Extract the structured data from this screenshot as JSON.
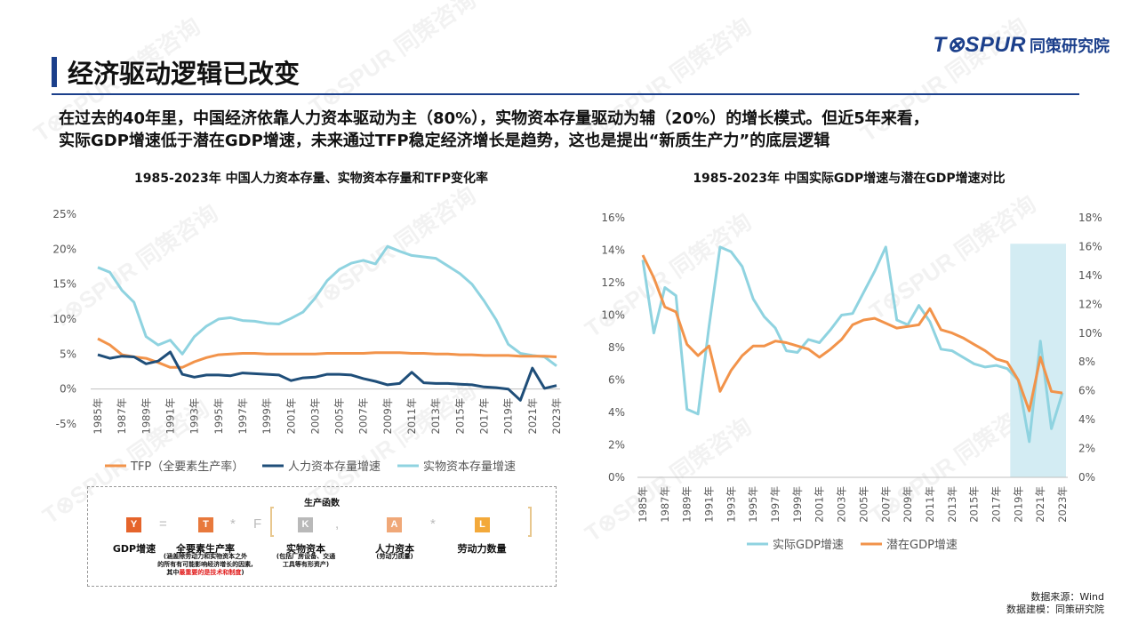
{
  "brand": {
    "mark": "T⊗SPUR",
    "name": "同策研究院"
  },
  "watermark_text": "T⊗SPUR 同策咨询",
  "page_title": "经济驱动逻辑已改变",
  "subtitle": {
    "line1": "在过去的40年里，中国经济依靠人力资本驱动为主（80%），实物资本存量驱动为辅（20%）的增长模式。但近5年来看，",
    "line2": "实际GDP增速低于潜在GDP增速，未来通过TFP稳定经济增长是趋势，这也是提出“新质生产力”的底层逻辑"
  },
  "formula": {
    "title": "生产函数",
    "symbols": {
      "Y": "Y",
      "eq": "=",
      "T": "T",
      "times": "*",
      "F": "F",
      "K": "K",
      "comma": ",",
      "A": "A",
      "times2": "*",
      "L": "L"
    },
    "labels": {
      "Y": "GDP增速",
      "T": "全要素生产率",
      "K": "实物资本",
      "A": "人力资本",
      "L": "劳动力数量"
    },
    "notes": {
      "T1": "(涵盖除劳动力和实物资本之外",
      "T2": "的所有有可能影响经济增长的因素,",
      "T3a": "其中",
      "T3b": "最重要的是技术和制度",
      "T3c": ")",
      "K1": "(包括厂房设备、交通",
      "K2": "工具等有形资产)",
      "A1": "(劳动力质量)"
    },
    "colors": {
      "Y": "#e5642b",
      "T": "#e8793c",
      "K": "#b9b9b9",
      "A": "#f0a878",
      "L": "#f3a93a"
    }
  },
  "source": {
    "line1": "数据来源：Wind",
    "line2": "数据建模：同策研究院"
  },
  "chart_data": [
    {
      "type": "line",
      "title": "1985-2023年 中国人力资本存量、实物资本存量和TFP变化率",
      "x": [
        1985,
        1986,
        1987,
        1988,
        1989,
        1990,
        1991,
        1992,
        1993,
        1994,
        1995,
        1996,
        1997,
        1998,
        1999,
        2000,
        2001,
        2002,
        2003,
        2004,
        2005,
        2006,
        2007,
        2008,
        2009,
        2010,
        2011,
        2012,
        2013,
        2014,
        2015,
        2016,
        2017,
        2018,
        2019,
        2020,
        2021,
        2022,
        2023
      ],
      "x_tick_labels": [
        "1985年",
        "1987年",
        "1989年",
        "1991年",
        "1993年",
        "1995年",
        "1997年",
        "1999年",
        "2001年",
        "2003年",
        "2005年",
        "2007年",
        "2009年",
        "2011年",
        "2013年",
        "2015年",
        "2017年",
        "2019年",
        "2021年",
        "2023年"
      ],
      "y_ticks": [
        "25%",
        "20%",
        "15%",
        "10%",
        "5%",
        "0%",
        "-5%"
      ],
      "ylim": [
        -5,
        25
      ],
      "y_unit": "%",
      "grid": false,
      "legend_position": "bottom",
      "series": [
        {
          "name": "TFP（全要素生产率）",
          "color": "#f2934a",
          "values": [
            7.2,
            6.3,
            4.9,
            4.6,
            4.4,
            3.8,
            3.1,
            3.1,
            3.9,
            4.5,
            4.9,
            5.0,
            5.1,
            5.1,
            5.0,
            5.0,
            5.0,
            5.0,
            5.0,
            5.1,
            5.1,
            5.1,
            5.1,
            5.2,
            5.2,
            5.2,
            5.1,
            5.1,
            5.0,
            5.0,
            4.9,
            4.9,
            4.8,
            4.8,
            4.8,
            4.7,
            4.7,
            4.7,
            4.6
          ]
        },
        {
          "name": "人力资本存量增速",
          "color": "#1f4e79",
          "values": [
            4.9,
            4.4,
            4.7,
            4.6,
            3.6,
            4.0,
            5.3,
            2.1,
            1.7,
            2.0,
            2.0,
            1.9,
            2.3,
            2.2,
            2.1,
            2.0,
            1.2,
            1.6,
            1.7,
            2.1,
            2.1,
            2.0,
            1.5,
            1.1,
            0.6,
            0.8,
            2.4,
            0.9,
            0.8,
            0.8,
            0.7,
            0.6,
            0.3,
            0.2,
            0.0,
            -1.6,
            3.0,
            0.1,
            0.5
          ]
        },
        {
          "name": "实物资本存量增速",
          "color": "#8fd3e0",
          "values": [
            17.4,
            16.7,
            14.1,
            12.4,
            7.5,
            6.3,
            7.0,
            5.0,
            7.5,
            9.0,
            10.0,
            10.2,
            9.8,
            9.7,
            9.4,
            9.3,
            10.1,
            11.0,
            13.0,
            15.5,
            17.1,
            18.0,
            18.4,
            17.9,
            20.4,
            19.7,
            19.1,
            18.9,
            18.7,
            17.6,
            16.5,
            15.0,
            12.6,
            9.9,
            6.4,
            5.1,
            4.8,
            4.6,
            3.3
          ]
        }
      ]
    },
    {
      "type": "line",
      "title": "1985-2023年 中国实际GDP增速与潜在GDP增速对比",
      "x": [
        1985,
        1986,
        1987,
        1988,
        1989,
        1990,
        1991,
        1992,
        1993,
        1994,
        1995,
        1996,
        1997,
        1998,
        1999,
        2000,
        2001,
        2002,
        2003,
        2004,
        2005,
        2006,
        2007,
        2008,
        2009,
        2010,
        2011,
        2012,
        2013,
        2014,
        2015,
        2016,
        2017,
        2018,
        2019,
        2020,
        2021,
        2022,
        2023
      ],
      "x_tick_labels": [
        "1985年",
        "1987年",
        "1989年",
        "1991年",
        "1993年",
        "1995年",
        "1997年",
        "1999年",
        "2001年",
        "2003年",
        "2005年",
        "2007年",
        "2009年",
        "2011年",
        "2013年",
        "2015年",
        "2017年",
        "2019年",
        "2021年",
        "2023年"
      ],
      "y_ticks_left": [
        "16%",
        "14%",
        "12%",
        "10%",
        "8%",
        "6%",
        "4%",
        "2%",
        "0%"
      ],
      "y_ticks_right": [
        "18%",
        "16%",
        "14%",
        "12%",
        "10%",
        "8%",
        "6%",
        "4%",
        "2%",
        "0%"
      ],
      "ylim_left": [
        0,
        16
      ],
      "ylim_right": [
        0,
        18
      ],
      "y_unit": "%",
      "grid": false,
      "legend_position": "bottom",
      "highlight_range": [
        2019,
        2023
      ],
      "highlight_color": "#d3ecf3",
      "series": [
        {
          "name": "实际GDP增速",
          "axis": "left",
          "color": "#8fd3e0",
          "values": [
            13.4,
            8.9,
            11.7,
            11.2,
            4.2,
            3.9,
            9.3,
            14.2,
            13.9,
            13.0,
            11.0,
            9.9,
            9.2,
            7.8,
            7.7,
            8.5,
            8.3,
            9.1,
            10.0,
            10.1,
            11.4,
            12.7,
            14.2,
            9.7,
            9.4,
            10.6,
            9.6,
            7.9,
            7.8,
            7.4,
            7.0,
            6.8,
            6.9,
            6.7,
            6.0,
            2.2,
            8.4,
            3.0,
            5.2
          ]
        },
        {
          "name": "潜在GDP增速",
          "axis": "left",
          "color": "#f2934a",
          "values": [
            13.7,
            12.3,
            10.5,
            10.2,
            8.2,
            7.5,
            8.1,
            5.3,
            6.6,
            7.5,
            8.1,
            8.1,
            8.4,
            8.3,
            8.1,
            7.9,
            7.4,
            7.9,
            8.5,
            9.4,
            9.7,
            9.8,
            9.5,
            9.2,
            9.3,
            9.4,
            10.4,
            9.1,
            8.9,
            8.6,
            8.2,
            7.8,
            7.3,
            7.1,
            6.0,
            4.1,
            7.4,
            5.3,
            5.2
          ]
        }
      ]
    }
  ]
}
